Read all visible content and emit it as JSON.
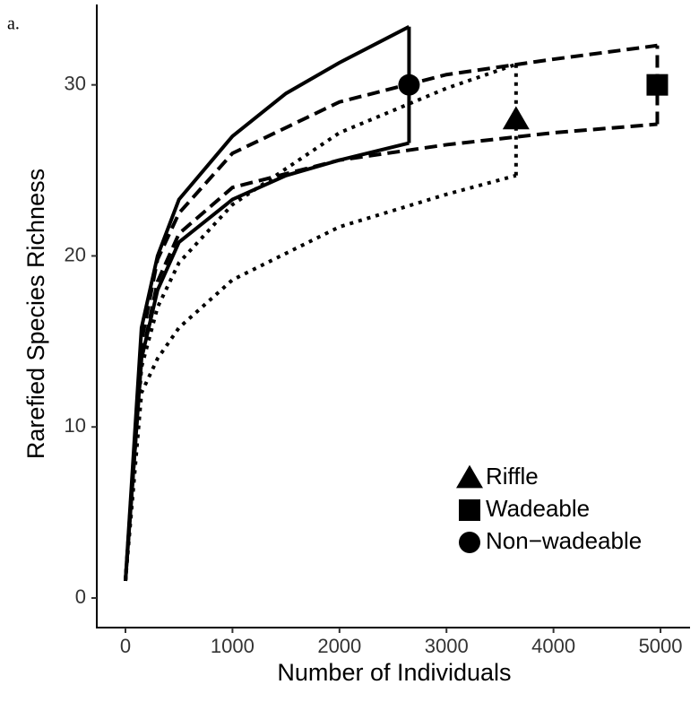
{
  "chart_data": {
    "type": "rarefaction",
    "panel_label": "a.",
    "xlabel": "Number of Individuals",
    "ylabel": "Rarefied Species Richness",
    "xlim": [
      -268,
      5276
    ],
    "ylim": [
      -1.73,
      34.7
    ],
    "xticks": [
      0,
      1000,
      2000,
      3000,
      4000,
      5000
    ],
    "yticks": [
      0,
      10,
      20,
      30
    ],
    "legend": "lower right",
    "color": "#000000",
    "series": [
      {
        "name": "Riffle",
        "marker": "triangle",
        "linestyle": "dotted",
        "x": [
          0,
          150,
          300,
          500,
          1000,
          2000,
          3000,
          3650
        ],
        "upper": [
          1,
          13.5,
          17,
          19.6,
          23,
          27.2,
          29.8,
          31.2
        ],
        "lower": [
          1,
          12,
          14,
          15.8,
          18.6,
          21.7,
          23.6,
          24.7
        ],
        "point": {
          "x": 3650,
          "y": 28
        }
      },
      {
        "name": "Wadeable",
        "marker": "square",
        "linestyle": "dashed",
        "x": [
          0,
          150,
          300,
          500,
          1000,
          2000,
          3000,
          4000,
          4970
        ],
        "upper": [
          1,
          15,
          19.8,
          22.5,
          26,
          29,
          30.6,
          31.5,
          32.3
        ],
        "lower": [
          1,
          14,
          18.5,
          21.3,
          24,
          25.6,
          26.5,
          27.2,
          27.7
        ],
        "point": {
          "x": 4970,
          "y": 30
        }
      },
      {
        "name": "Non−wadeable",
        "marker": "circle",
        "linestyle": "solid",
        "x": [
          0,
          150,
          300,
          500,
          1000,
          1500,
          2000,
          2650
        ],
        "upper": [
          1,
          15.8,
          20,
          23.3,
          27,
          29.5,
          31.3,
          33.4
        ],
        "lower": [
          1,
          14,
          18,
          20.8,
          23.3,
          24.7,
          25.6,
          26.6
        ],
        "point": {
          "x": 2650,
          "y": 30
        }
      }
    ]
  }
}
